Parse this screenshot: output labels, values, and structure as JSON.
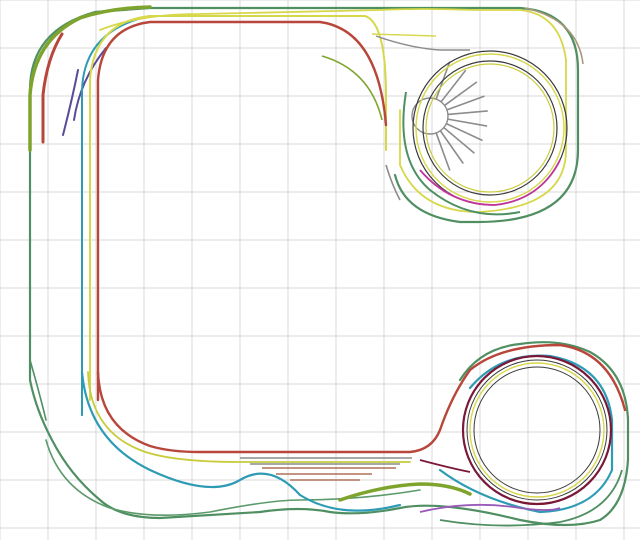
{
  "canvas": {
    "background": "#ffffff",
    "grid_color": "#d8d8d8"
  },
  "palette": {
    "main_green": "#4f8f62",
    "lime": "#b8c83a",
    "yellow": "#d6d84a",
    "red": "#b8463a",
    "teal": "#2e9bb5",
    "olive": "#7fa42e",
    "purple": "#5a4a9a",
    "magenta": "#c0349a",
    "maroon": "#7a1838",
    "tan": "#a89878",
    "grey_sidings": "#8c8c8c",
    "brown_sidings": "#b07058",
    "black": "#2a2a2a"
  },
  "layout": {
    "elements": [
      "grid",
      "outer-loop",
      "inner-loops",
      "turntable-roundhouse",
      "helix-top-right",
      "helix-bottom-right",
      "yard-sidings",
      "branch-lines"
    ]
  }
}
